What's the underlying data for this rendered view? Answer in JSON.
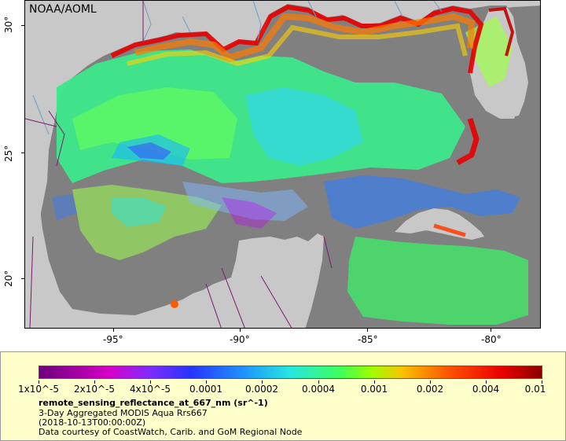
{
  "map": {
    "logo": "NOAA/AOML",
    "lat_labels": [
      "30°",
      "25°",
      "20°"
    ],
    "lon_labels": [
      "-95°",
      "-90°",
      "-85°",
      "-80°"
    ],
    "colors": {
      "land": "#c8c8c8",
      "no_data_ocean": "#808080",
      "borders": "#7a1a6e",
      "rivers": "#6e9dc8"
    }
  },
  "legend": {
    "colorbar_labels": [
      "1x10^-5",
      "2x10^-5",
      "4x10^-5",
      "0.0001",
      "0.0002",
      "0.0004",
      "0.001",
      "0.002",
      "0.004",
      "0.01"
    ],
    "title": "remote_sensing_reflectance_at_667_nm (sr^-1)",
    "subtitle": "3-Day Aggregated MODIS Aqua Rrs667",
    "date": "(2018-10-13T00:00:00Z)",
    "credit": "Data courtesy of CoastWatch, Carib. and GoM Regional Node"
  }
}
